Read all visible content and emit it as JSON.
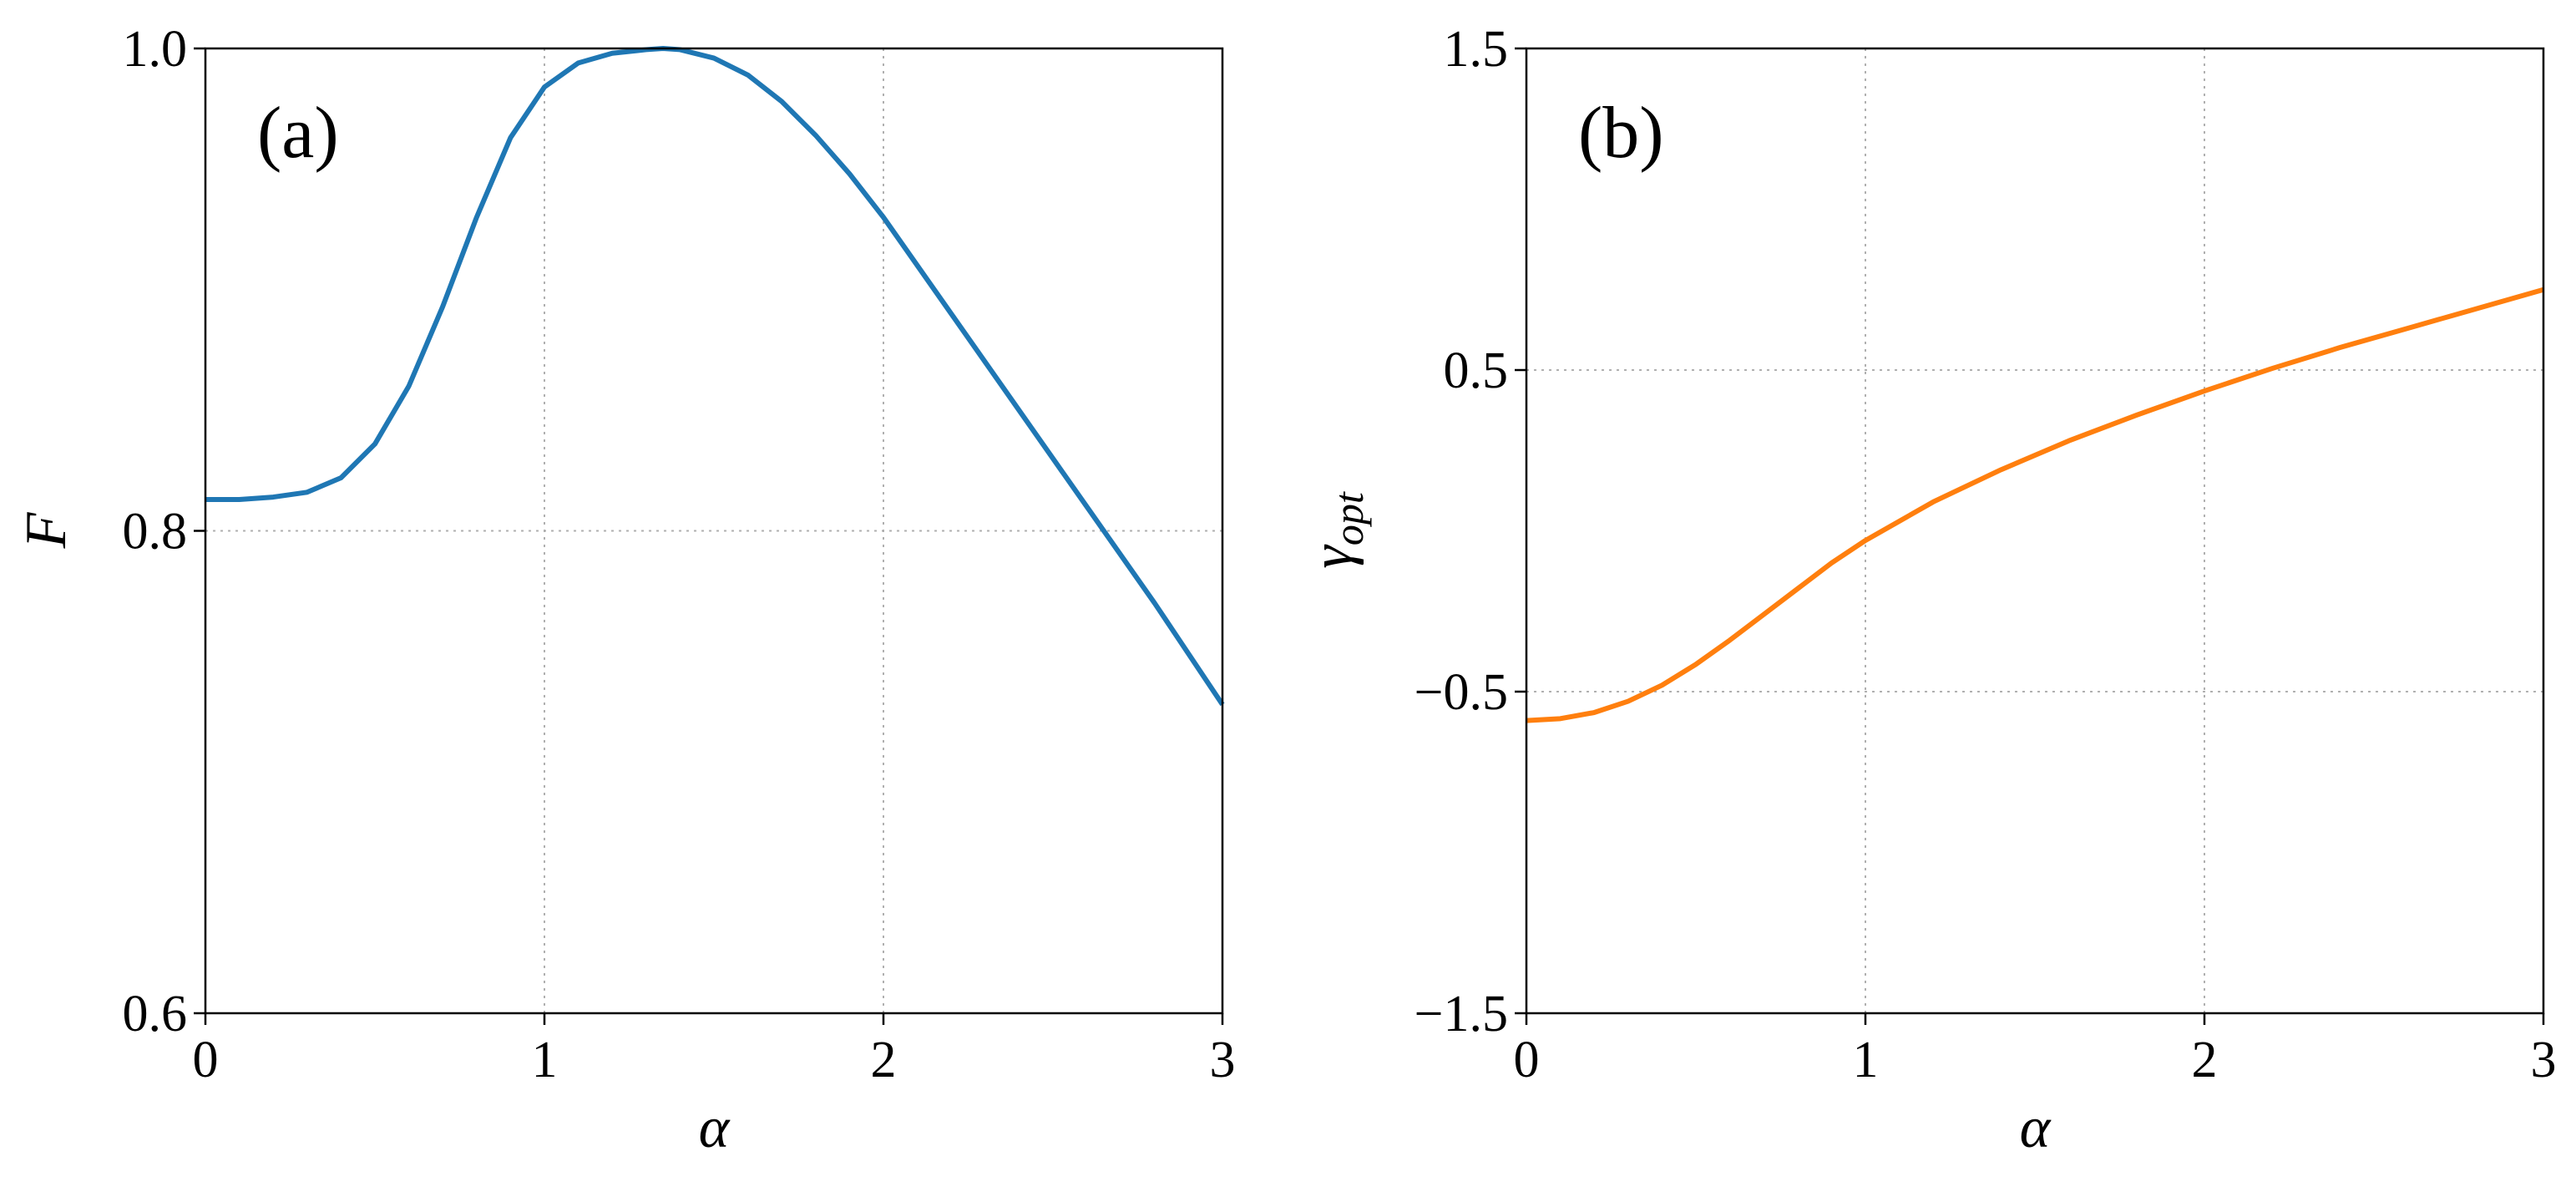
{
  "chart_data": [
    {
      "type": "line",
      "panel_label": "(a)",
      "xlabel": "α",
      "ylabel": "F",
      "xlim": [
        0,
        3
      ],
      "ylim": [
        0.6,
        1.0
      ],
      "xticks": [
        0,
        1,
        2,
        3
      ],
      "yticks": [
        0.6,
        0.8,
        1.0
      ],
      "xtick_labels": [
        "0",
        "1",
        "2",
        "3"
      ],
      "ytick_labels": [
        "0.6",
        "0.8",
        "1.0"
      ],
      "grid": true,
      "color": "#1f77b4",
      "series": [
        {
          "x": [
            0,
            0.1,
            0.2,
            0.3,
            0.4,
            0.5,
            0.6,
            0.7,
            0.8,
            0.9,
            1.0,
            1.1,
            1.2,
            1.3,
            1.35,
            1.4,
            1.5,
            1.6,
            1.7,
            1.8,
            1.9,
            2.0,
            2.2,
            2.4,
            2.6,
            2.8,
            3.0
          ],
          "y": [
            0.813,
            0.813,
            0.814,
            0.816,
            0.822,
            0.836,
            0.86,
            0.893,
            0.93,
            0.963,
            0.984,
            0.994,
            0.998,
            0.9995,
            1.0,
            0.9995,
            0.996,
            0.989,
            0.978,
            0.964,
            0.948,
            0.93,
            0.89,
            0.85,
            0.81,
            0.77,
            0.728
          ]
        }
      ]
    },
    {
      "type": "line",
      "panel_label": "(b)",
      "xlabel": "α",
      "ylabel": "γ",
      "ylabel_subscript": "opt",
      "xlim": [
        0,
        3
      ],
      "ylim": [
        -1.5,
        1.5
      ],
      "xticks": [
        0,
        1,
        2,
        3
      ],
      "yticks": [
        -1.5,
        -0.5,
        0.5,
        1.5
      ],
      "xtick_labels": [
        "0",
        "1",
        "2",
        "3"
      ],
      "ytick_labels": [
        "−1.5",
        "−0.5",
        "0.5",
        "1.5"
      ],
      "grid": true,
      "color": "#ff7f0e",
      "series": [
        {
          "x": [
            0,
            0.1,
            0.2,
            0.3,
            0.4,
            0.5,
            0.6,
            0.7,
            0.8,
            0.9,
            1.0,
            1.2,
            1.4,
            1.6,
            1.8,
            2.0,
            2.2,
            2.4,
            2.6,
            2.8,
            3.0
          ],
          "y": [
            -0.59,
            -0.584,
            -0.565,
            -0.53,
            -0.48,
            -0.415,
            -0.34,
            -0.26,
            -0.18,
            -0.1,
            -0.03,
            0.09,
            0.19,
            0.28,
            0.36,
            0.435,
            0.505,
            0.57,
            0.63,
            0.69,
            0.75
          ]
        }
      ]
    }
  ]
}
